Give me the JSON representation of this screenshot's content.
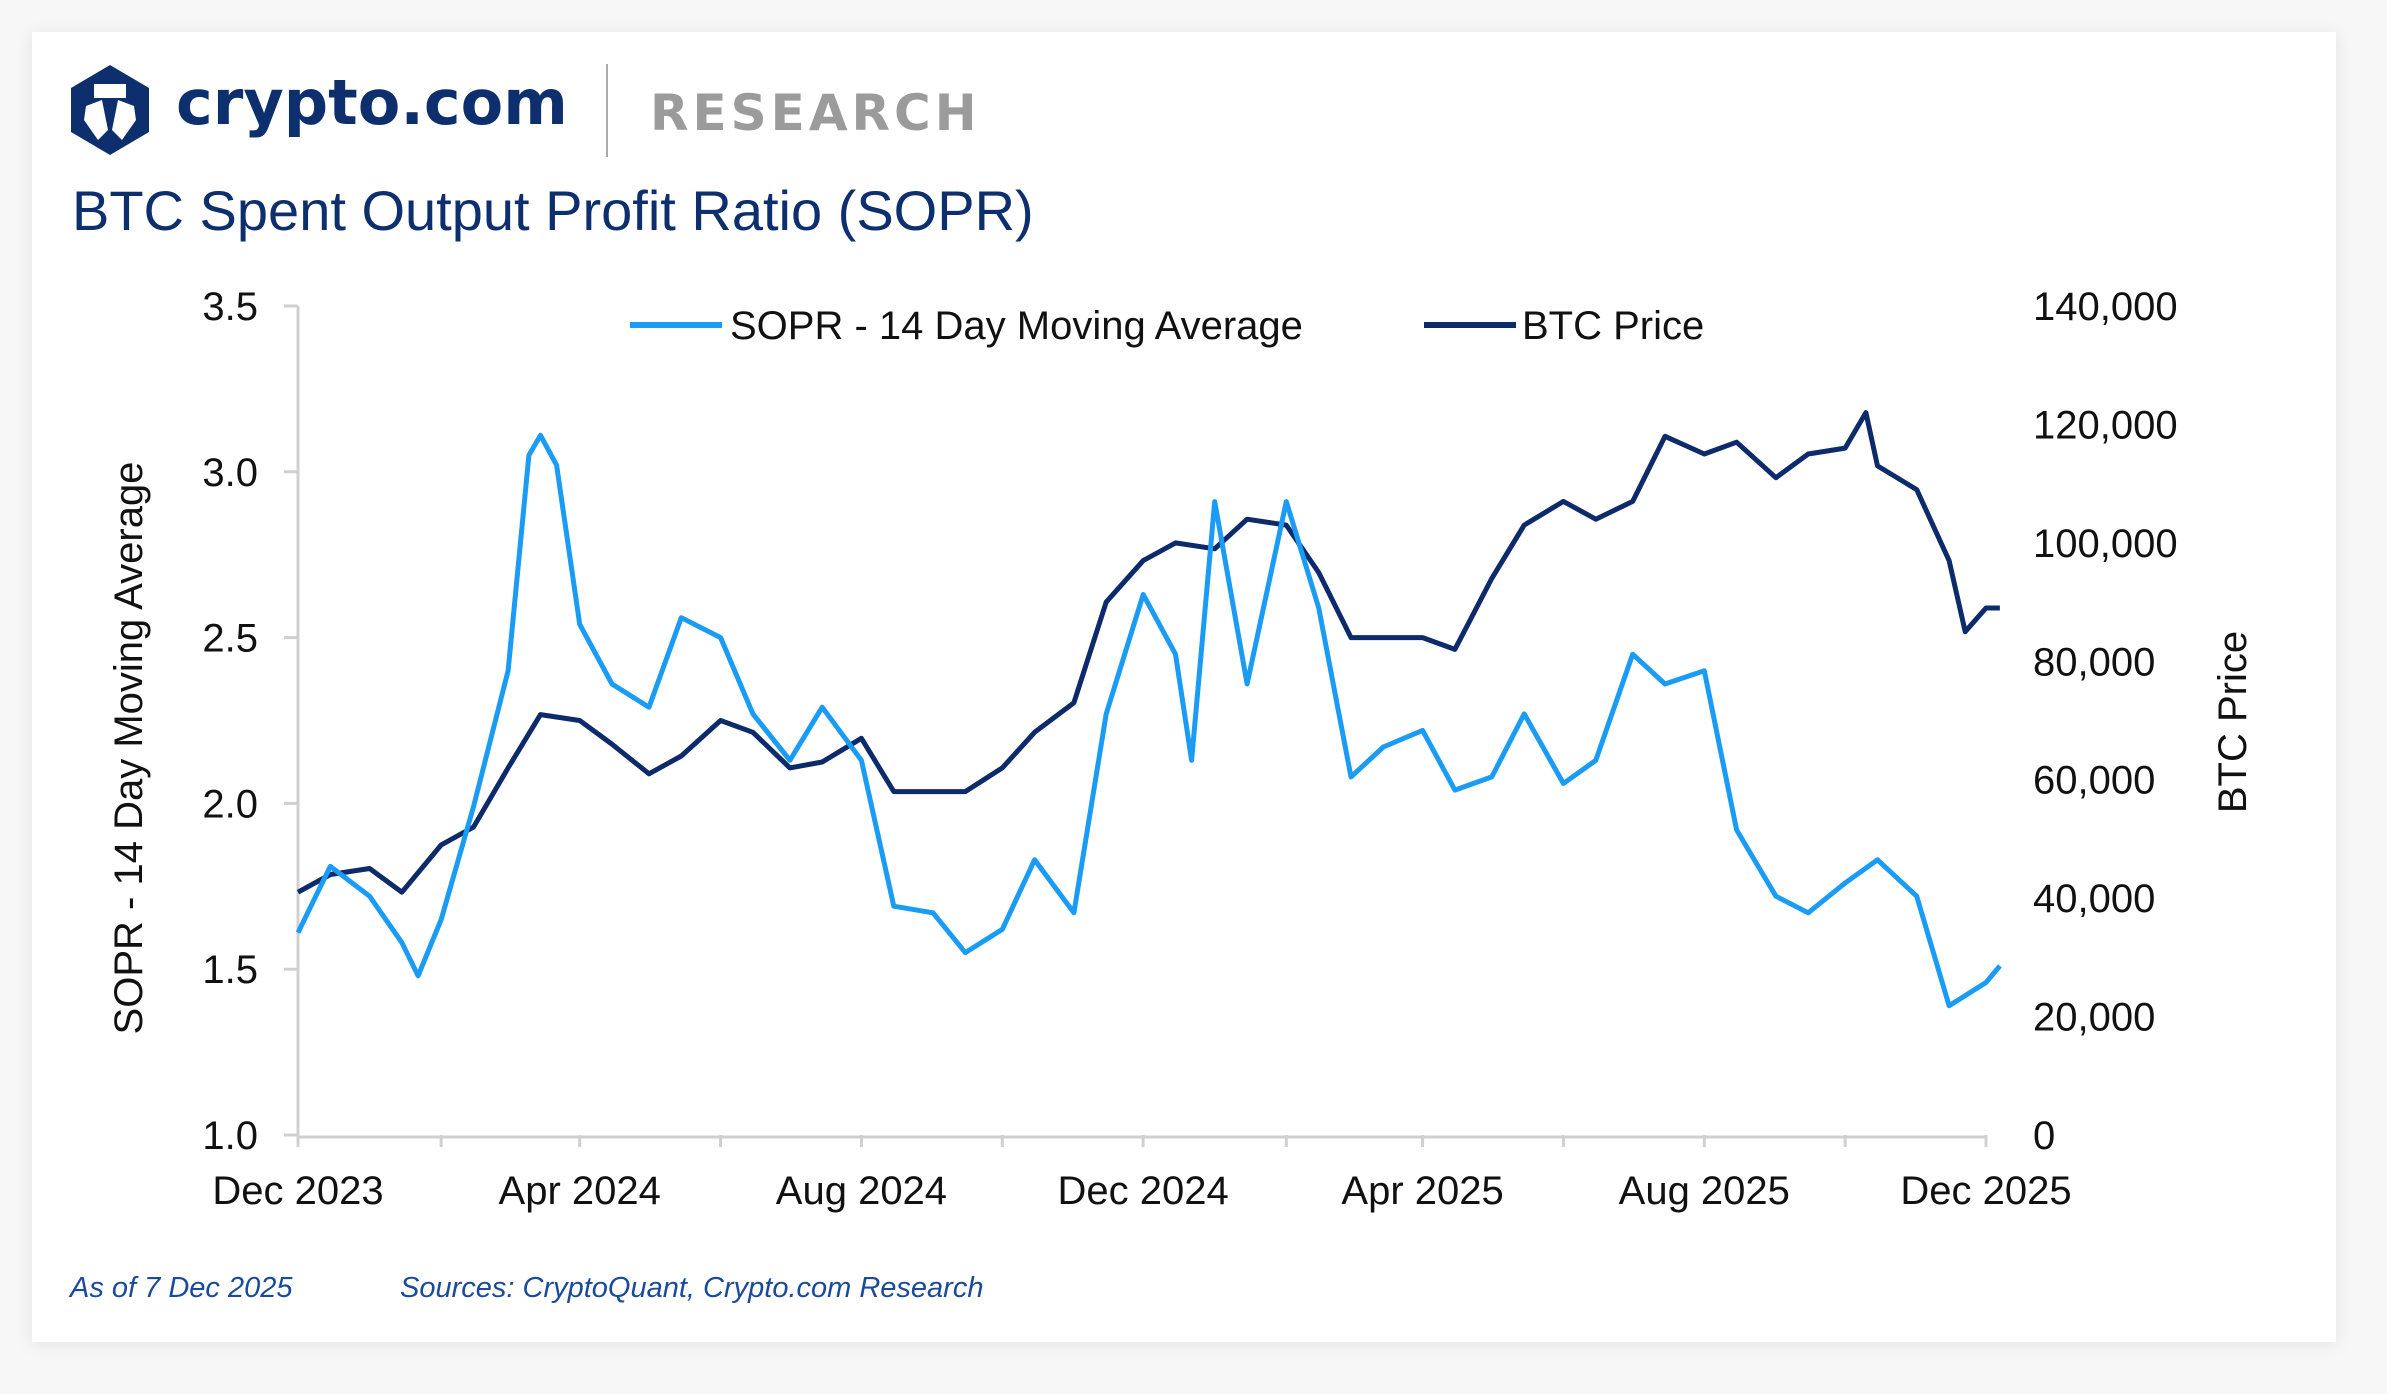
{
  "brand": {
    "logo_text": "crypto.com",
    "section": "RESEARCH"
  },
  "colors": {
    "sopr": "#1a9cf5",
    "btc": "#0d2a6b",
    "title": "#0d2f6e",
    "research": "#9b9b9b"
  },
  "footer": {
    "as_of": "As of 7 Dec 2025",
    "sources": "Sources: CryptoQuant, Crypto.com Research"
  },
  "chart_data": {
    "type": "line",
    "title": "BTC Spent Output Profit Ratio (SOPR)",
    "ylabel_left": "SOPR - 14 Day Moving Average",
    "ylabel_right": "BTC Price",
    "ylim_left": [
      1.0,
      3.5
    ],
    "ylim_right": [
      0,
      140000
    ],
    "yticks_left": [
      "1.0",
      "1.5",
      "2.0",
      "2.5",
      "3.0",
      "3.5"
    ],
    "yticks_right": [
      "0",
      "20,000",
      "40,000",
      "60,000",
      "80,000",
      "100,000",
      "120,000",
      "140,000"
    ],
    "xlim": [
      "2023-12-01",
      "2025-12-01"
    ],
    "xticks": [
      "Dec 2023",
      "Apr 2024",
      "Aug 2024",
      "Dec 2024",
      "Apr 2025",
      "Aug 2025",
      "Dec 2025"
    ],
    "grid": false,
    "legend": "top-center",
    "series": [
      {
        "name": "SOPR - 14 Day Moving Average",
        "axis": "left",
        "x": [
          "2023-12-01",
          "2023-12-15",
          "2024-01-01",
          "2024-01-15",
          "2024-01-22",
          "2024-02-01",
          "2024-02-15",
          "2024-03-01",
          "2024-03-10",
          "2024-03-15",
          "2024-03-22",
          "2024-04-01",
          "2024-04-15",
          "2024-05-01",
          "2024-05-15",
          "2024-06-01",
          "2024-06-15",
          "2024-07-01",
          "2024-07-15",
          "2024-08-01",
          "2024-08-15",
          "2024-09-01",
          "2024-09-15",
          "2024-10-01",
          "2024-10-15",
          "2024-11-01",
          "2024-11-15",
          "2024-12-01",
          "2024-12-15",
          "2024-12-22",
          "2025-01-01",
          "2025-01-15",
          "2025-02-01",
          "2025-02-15",
          "2025-03-01",
          "2025-03-15",
          "2025-04-01",
          "2025-04-15",
          "2025-05-01",
          "2025-05-15",
          "2025-06-01",
          "2025-06-15",
          "2025-07-01",
          "2025-07-15",
          "2025-08-01",
          "2025-08-15",
          "2025-09-01",
          "2025-09-15",
          "2025-10-01",
          "2025-10-15",
          "2025-11-01",
          "2025-11-15",
          "2025-12-01",
          "2025-12-07"
        ],
        "values": [
          1.61,
          1.81,
          1.72,
          1.58,
          1.48,
          1.65,
          1.99,
          2.4,
          3.05,
          3.11,
          3.02,
          2.54,
          2.36,
          2.29,
          2.56,
          2.5,
          2.27,
          2.13,
          2.29,
          2.13,
          1.69,
          1.67,
          1.55,
          1.62,
          1.83,
          1.67,
          2.27,
          2.63,
          2.45,
          2.13,
          2.91,
          2.36,
          2.91,
          2.59,
          2.08,
          2.17,
          2.22,
          2.04,
          2.08,
          2.27,
          2.06,
          2.13,
          2.45,
          2.36,
          2.4,
          1.92,
          1.72,
          1.67,
          1.76,
          1.83,
          1.72,
          1.39,
          1.46,
          1.51
        ]
      },
      {
        "name": "BTC Price",
        "axis": "right",
        "x": [
          "2023-12-01",
          "2023-12-15",
          "2024-01-01",
          "2024-01-15",
          "2024-02-01",
          "2024-02-15",
          "2024-03-01",
          "2024-03-15",
          "2024-04-01",
          "2024-04-15",
          "2024-05-01",
          "2024-05-15",
          "2024-06-01",
          "2024-06-15",
          "2024-07-01",
          "2024-07-15",
          "2024-08-01",
          "2024-08-15",
          "2024-09-01",
          "2024-09-15",
          "2024-10-01",
          "2024-10-15",
          "2024-11-01",
          "2024-11-15",
          "2024-12-01",
          "2024-12-15",
          "2025-01-01",
          "2025-01-15",
          "2025-02-01",
          "2025-02-15",
          "2025-03-01",
          "2025-03-15",
          "2025-04-01",
          "2025-04-15",
          "2025-05-01",
          "2025-05-15",
          "2025-06-01",
          "2025-06-15",
          "2025-07-01",
          "2025-07-15",
          "2025-08-01",
          "2025-08-15",
          "2025-09-01",
          "2025-09-15",
          "2025-10-01",
          "2025-10-10",
          "2025-10-15",
          "2025-11-01",
          "2025-11-15",
          "2025-11-22",
          "2025-12-01",
          "2025-12-07"
        ],
        "values": [
          41000,
          44000,
          45000,
          41000,
          49000,
          52000,
          62000,
          71000,
          70000,
          66000,
          61000,
          64000,
          70000,
          68000,
          62000,
          63000,
          67000,
          58000,
          58000,
          58000,
          62000,
          68000,
          73000,
          90000,
          97000,
          100000,
          99000,
          104000,
          103000,
          95000,
          84000,
          84000,
          84000,
          82000,
          94000,
          103000,
          107000,
          104000,
          107000,
          118000,
          115000,
          117000,
          111000,
          115000,
          116000,
          122000,
          113000,
          109000,
          97000,
          85000,
          89000,
          89000
        ]
      }
    ]
  }
}
